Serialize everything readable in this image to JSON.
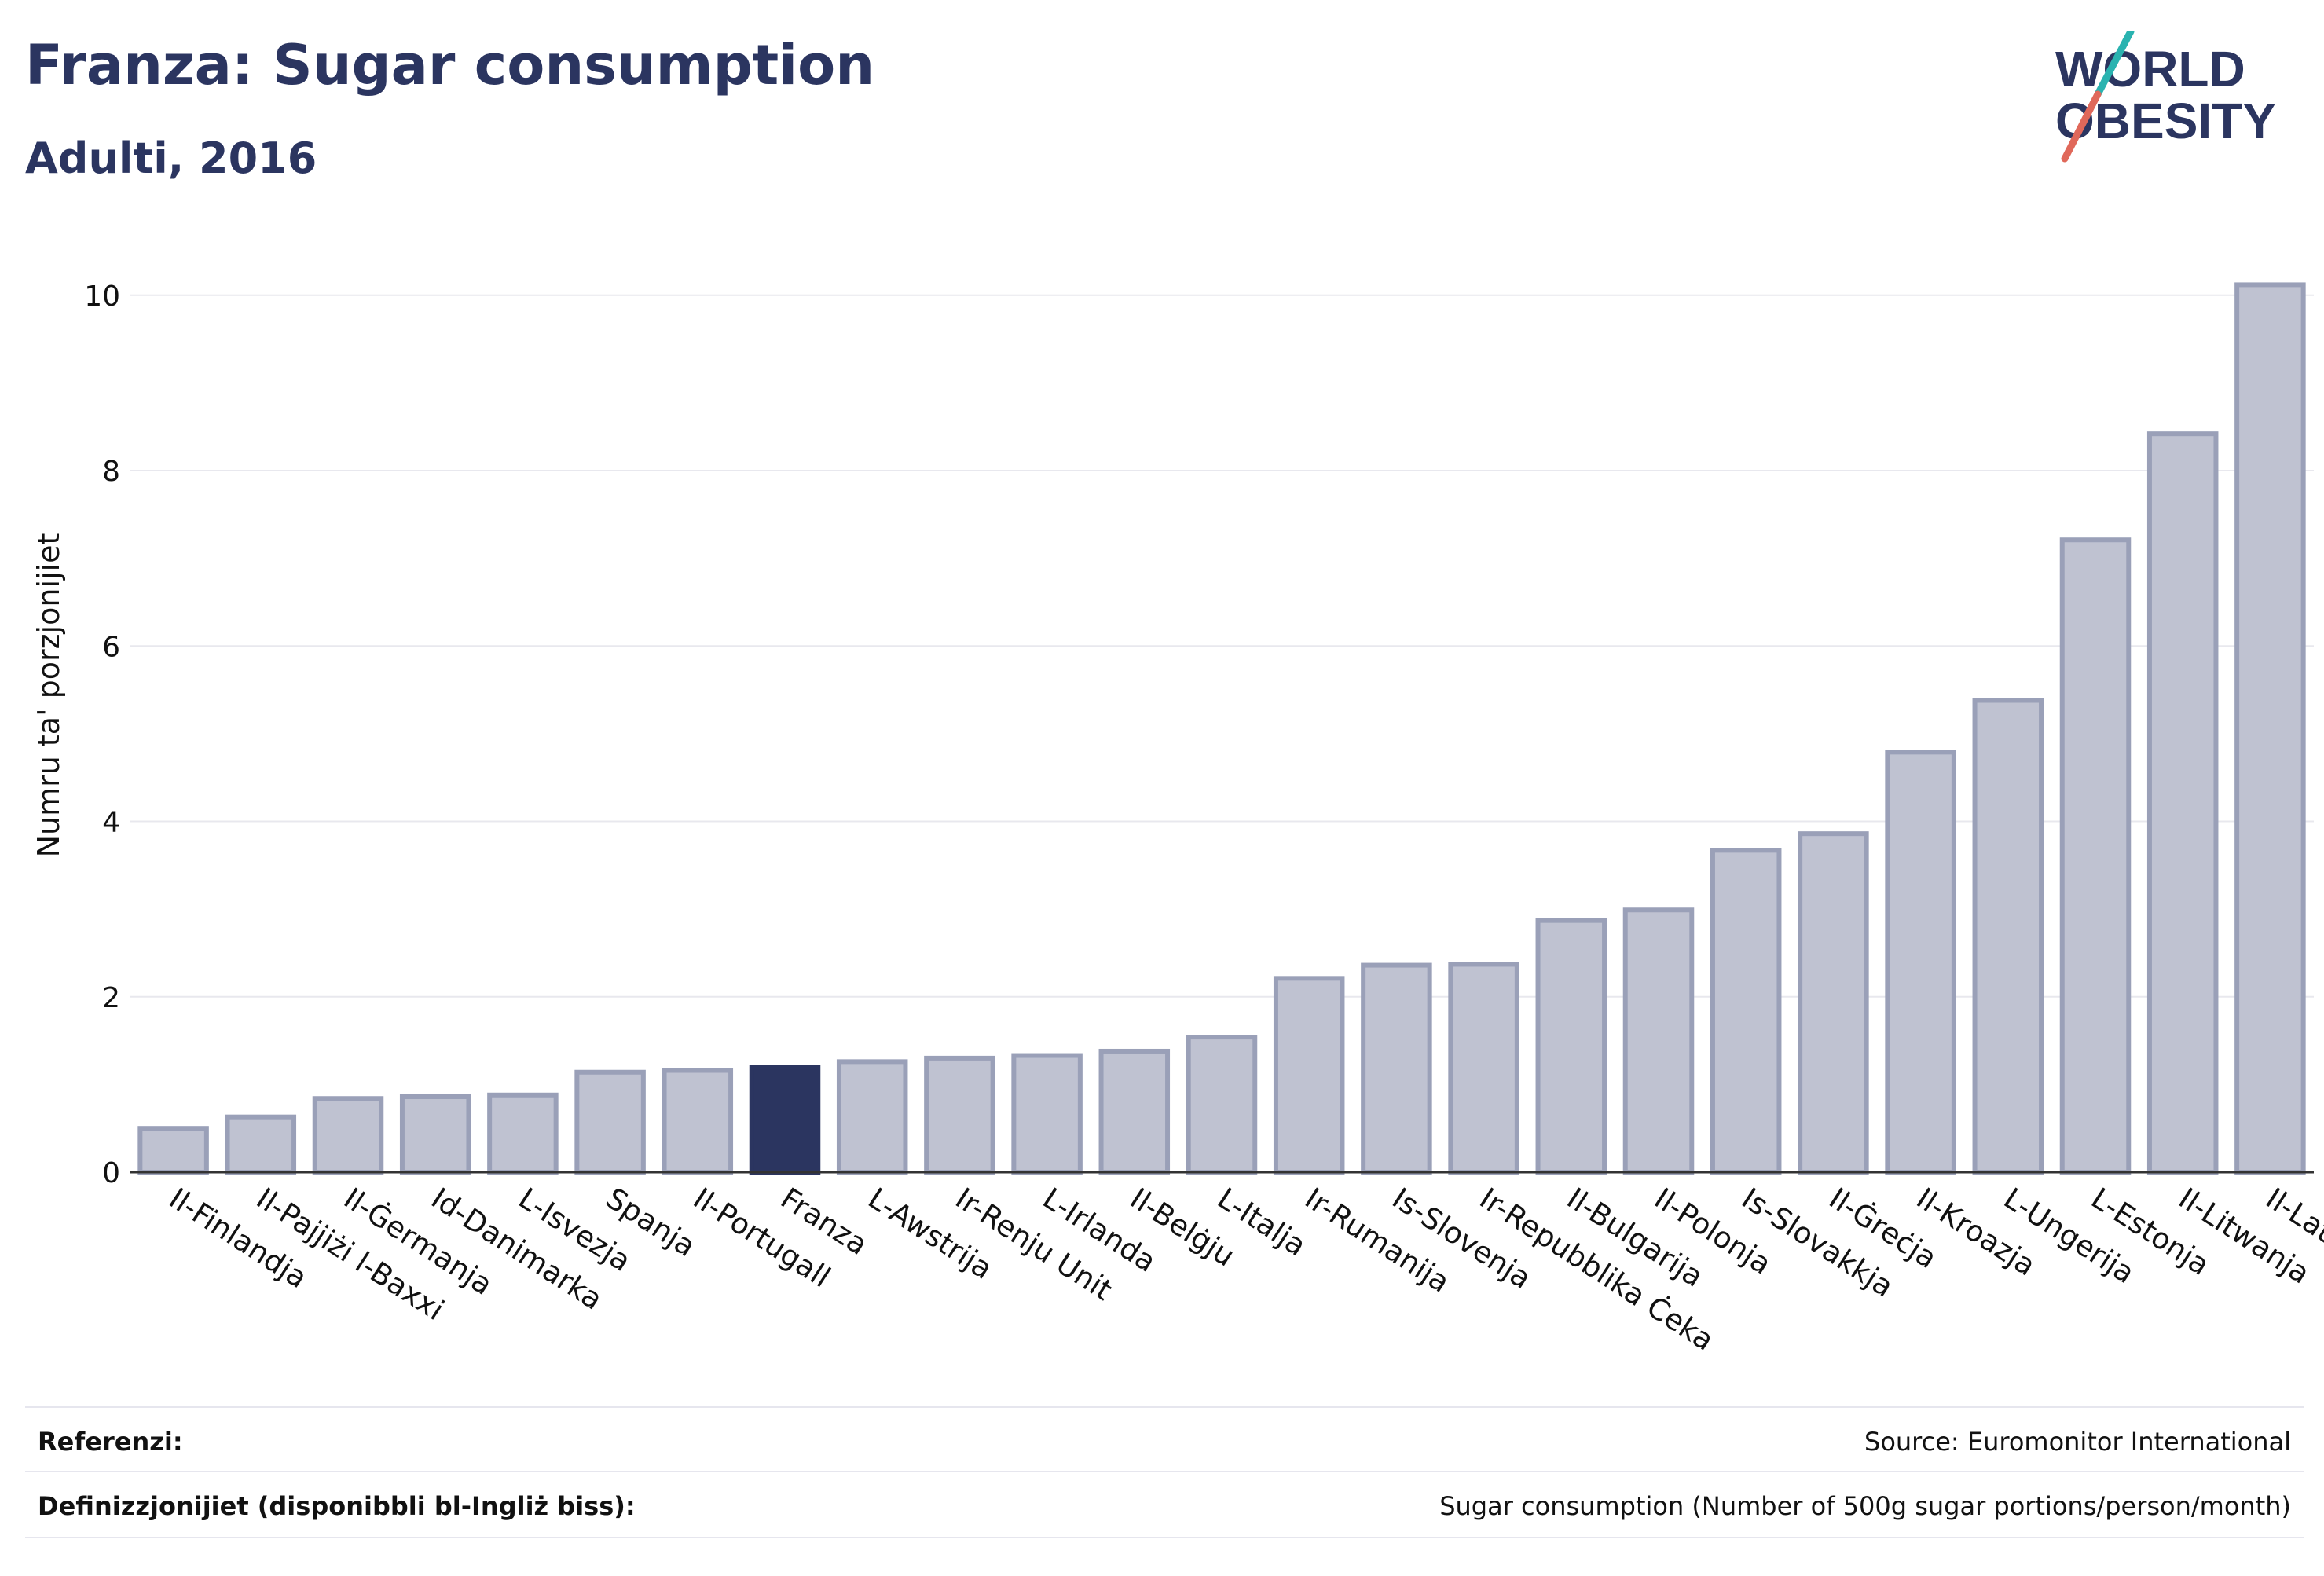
{
  "header": {
    "title": "Franza: Sugar consumption",
    "subtitle": "Adulti, 2016"
  },
  "logo": {
    "line1": "WORLD",
    "line2": "OBESITY",
    "accent_teal": "#2ab3b0",
    "accent_red": "#e0685a"
  },
  "chart_data": {
    "type": "bar",
    "title": "Franza: Sugar consumption",
    "subtitle": "Adulti, 2016",
    "xlabel": "",
    "ylabel": "Numru ta' porzjonijiet",
    "ylim": [
      0,
      10.5
    ],
    "yticks": [
      0,
      2,
      4,
      6,
      8,
      10
    ],
    "grid": true,
    "highlight": "Franza",
    "colors": {
      "bar": "#bfc2d1",
      "bar_border": "#9aa0b8",
      "highlight": "#2b3560"
    },
    "categories": [
      "Il-Finlandja",
      "Il-Pajjiżi l-Baxxi",
      "Il-Ġermanja",
      "Id-Danimarka",
      "L-Isvezja",
      "Spanja",
      "Il-Portugall",
      "Franza",
      "L-Awstrija",
      "Ir-Renju Unit",
      "L-Irlanda",
      "Il-Belġju",
      "L-Italja",
      "Ir-Rumanija",
      "Is-Slovenja",
      "Ir-Repubblika Ċeka",
      "Il-Bulgarija",
      "Il-Polonja",
      "Is-Slovakkja",
      "Il-Ġreċja",
      "Il-Kroazja",
      "L-Ungerija",
      "L-Estonja",
      "Il-Litwanja",
      "Il-Latvja"
    ],
    "values": [
      0.5,
      0.63,
      0.84,
      0.86,
      0.88,
      1.14,
      1.16,
      1.2,
      1.26,
      1.3,
      1.33,
      1.38,
      1.54,
      2.21,
      2.36,
      2.37,
      2.87,
      2.99,
      3.67,
      3.86,
      4.79,
      5.38,
      7.21,
      8.42,
      10.12
    ]
  },
  "footer": {
    "references_label": "Referenzi:",
    "references_value": "Source: Euromonitor International",
    "definitions_label": "Definizzjonijiet (disponibbli bl-Ingliż biss):",
    "definitions_value": "Sugar consumption (Number of 500g sugar portions/person/month)"
  }
}
